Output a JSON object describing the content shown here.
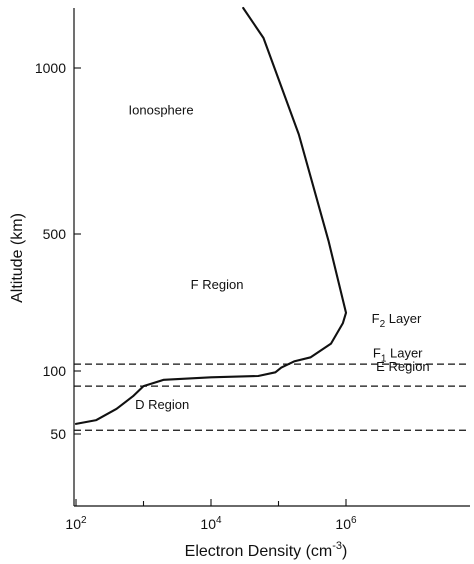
{
  "chart_data": {
    "type": "line",
    "title": "Ionosphere",
    "xlabel": "Electron Density (cm",
    "xlabel_sup": "-3",
    "xlabel_tail": ")",
    "ylabel": "Altitude (km)",
    "x_scale": "log",
    "y_scale": "piecewise",
    "x_ticks": [
      {
        "value": 100,
        "base": "10",
        "exp": "2"
      },
      {
        "value": 10000,
        "base": "10",
        "exp": "4"
      },
      {
        "value": 1000000,
        "base": "10",
        "exp": "6"
      }
    ],
    "y_ticks": [
      {
        "value": 50,
        "label": "50"
      },
      {
        "value": 100,
        "label": "100"
      },
      {
        "value": 500,
        "label": "500"
      },
      {
        "value": 1000,
        "label": "1000"
      }
    ],
    "y_axis_reference": [
      {
        "value": 30
      },
      {
        "value": 50
      },
      {
        "value": 100
      },
      {
        "value": 500
      },
      {
        "value": 1000
      },
      {
        "value": 1300
      }
    ],
    "xlim": [
      100,
      25000000
    ],
    "ylim": [
      30,
      1300
    ],
    "series": [
      {
        "points": [
          {
            "x": 100,
            "y": 58
          },
          {
            "x": 200,
            "y": 61
          },
          {
            "x": 400,
            "y": 70
          },
          {
            "x": 700,
            "y": 80
          },
          {
            "x": 1000,
            "y": 88
          },
          {
            "x": 2000,
            "y": 93
          },
          {
            "x": 10000,
            "y": 95
          },
          {
            "x": 50000,
            "y": 96
          },
          {
            "x": 90000,
            "y": 99
          },
          {
            "x": 110000,
            "y": 110
          },
          {
            "x": 170000,
            "y": 128
          },
          {
            "x": 300000,
            "y": 140
          },
          {
            "x": 600000,
            "y": 180
          },
          {
            "x": 900000,
            "y": 240
          },
          {
            "x": 1000000,
            "y": 270
          },
          {
            "x": 550000,
            "y": 480
          },
          {
            "x": 200000,
            "y": 800
          },
          {
            "x": 60000,
            "y": 1150
          },
          {
            "x": 30000,
            "y": 1300
          }
        ]
      }
    ],
    "boundaries": [
      {
        "y": 120
      },
      {
        "y": 88
      },
      {
        "y": 53
      }
    ],
    "annotations": [
      {
        "text": "Ionosphere",
        "x": 600,
        "y": 860,
        "size": 16
      },
      {
        "text": "F Region",
        "x": 5000,
        "y": 340,
        "size": 13
      },
      {
        "text": "D Region",
        "x": 750,
        "y": 70,
        "size": 13
      },
      {
        "text": "E Region",
        "x": 2800000,
        "y": 100,
        "size": 13
      },
      {
        "text": "F",
        "sub": "1",
        "tail": " Layer",
        "x": 2500000,
        "y": 140,
        "size": 13
      },
      {
        "text": "F",
        "sub": "2",
        "tail": " Layer",
        "x": 2400000,
        "y": 240,
        "size": 13
      }
    ]
  }
}
